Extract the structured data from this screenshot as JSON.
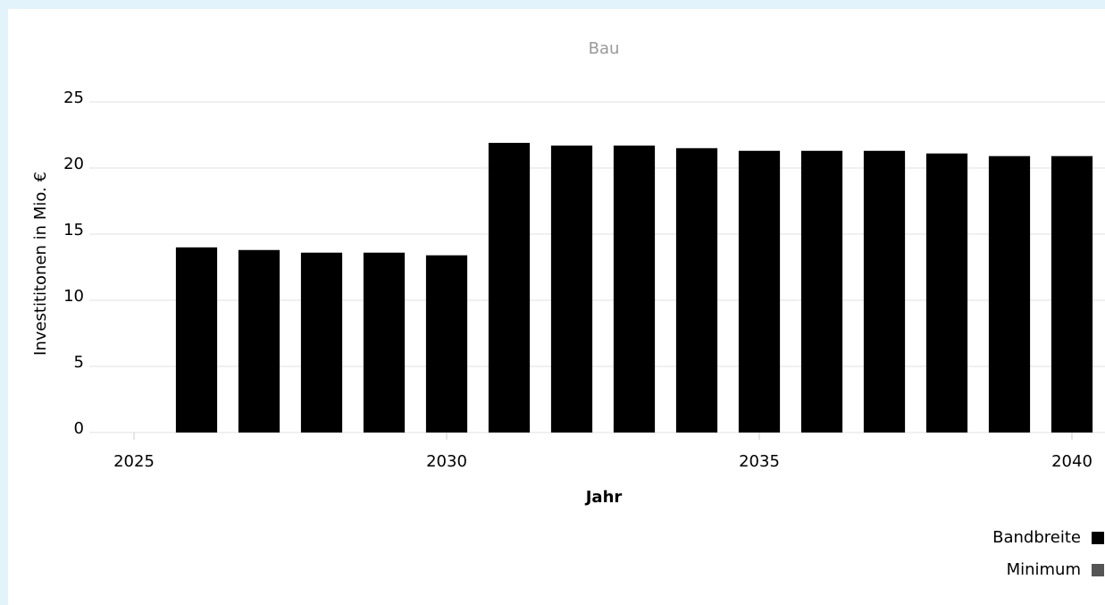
{
  "chart_data": {
    "type": "bar",
    "title": "Bau",
    "x_label": "Jahr",
    "y_label": "Investititonen in Mio. €",
    "x": [
      2026,
      2027,
      2028,
      2029,
      2030,
      2031,
      2032,
      2033,
      2034,
      2035,
      2036,
      2037,
      2038,
      2039,
      2040
    ],
    "series": [
      {
        "name": "Bandbreite",
        "color": "#000000",
        "values": [
          14.0,
          13.8,
          13.6,
          13.6,
          13.4,
          21.9,
          21.7,
          21.7,
          21.5,
          21.3,
          21.3,
          21.3,
          21.1,
          20.9,
          20.9
        ]
      },
      {
        "name": "Minimum",
        "color": "#555555",
        "values": [
          null,
          null,
          null,
          null,
          null,
          null,
          null,
          null,
          null,
          null,
          null,
          null,
          null,
          null,
          null
        ]
      }
    ],
    "xlim": [
      2024.5,
      2040.5
    ],
    "xticks": [
      2025,
      2030,
      2035,
      2040
    ],
    "ylim": [
      0,
      25
    ],
    "yticks": [
      0,
      5,
      10,
      15,
      20,
      25
    ],
    "grid": true,
    "legend": "bottom-right"
  }
}
